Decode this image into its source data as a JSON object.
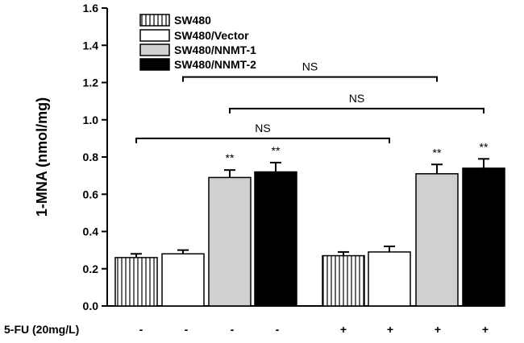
{
  "chart_data": {
    "type": "bar",
    "title": "",
    "ylabel": "1-MNA (nmol/mg)",
    "xlabel": "",
    "ylim": [
      0.0,
      1.6
    ],
    "yticks": [
      "0.0",
      "0.2",
      "0.4",
      "0.6",
      "0.8",
      "1.0",
      "1.2",
      "1.4",
      "1.6"
    ],
    "legend_position": "top-left",
    "series": [
      {
        "name": "SW480",
        "color": "#ffffff",
        "pattern": "vertical-stripes"
      },
      {
        "name": "SW480/Vector",
        "color": "#ffffff",
        "pattern": "none"
      },
      {
        "name": "SW480/NNMT-1",
        "color": "#d0d0d0",
        "pattern": "none"
      },
      {
        "name": "SW480/NNMT-2",
        "color": "#000000",
        "pattern": "none"
      }
    ],
    "bars": [
      {
        "series": 0,
        "value": 0.26,
        "error": 0.02,
        "annotation": ""
      },
      {
        "series": 1,
        "value": 0.28,
        "error": 0.02,
        "annotation": ""
      },
      {
        "series": 2,
        "value": 0.69,
        "error": 0.04,
        "annotation": "**"
      },
      {
        "series": 3,
        "value": 0.72,
        "error": 0.05,
        "annotation": "**"
      },
      {
        "series": 0,
        "value": 0.27,
        "error": 0.02,
        "annotation": ""
      },
      {
        "series": 1,
        "value": 0.29,
        "error": 0.03,
        "annotation": ""
      },
      {
        "series": 2,
        "value": 0.71,
        "error": 0.05,
        "annotation": "**"
      },
      {
        "series": 3,
        "value": 0.74,
        "error": 0.05,
        "annotation": "**"
      }
    ],
    "comparisons": [
      {
        "from_bar": 1,
        "to_bar": 6,
        "level": 1.23,
        "label": "NS"
      },
      {
        "from_bar": 2,
        "to_bar": 7,
        "level": 1.06,
        "label": "NS"
      },
      {
        "from_bar": 0,
        "to_bar": 5,
        "level": 0.9,
        "label": "NS"
      }
    ],
    "treatment_label": "5-FU (20mg/L)",
    "treatment_marks": [
      "-",
      "-",
      "-",
      "-",
      "+",
      "+",
      "+",
      "+"
    ]
  }
}
